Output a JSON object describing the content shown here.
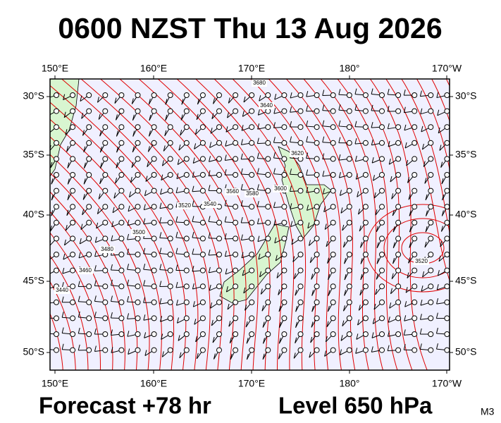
{
  "header": {
    "title": "0600 NZST Thu 13 Aug 2026"
  },
  "map": {
    "lon_labels": [
      "150°E",
      "160°E",
      "170°E",
      "180°",
      "170°W"
    ],
    "lat_labels": [
      "30°S",
      "35°S",
      "40°S",
      "45°S",
      "50°S"
    ],
    "contour_labels": [
      "3680",
      "3640",
      "3620",
      "3600",
      "3580",
      "3560",
      "3540",
      "3520",
      "3500",
      "3480",
      "3460",
      "3440",
      "3520"
    ]
  },
  "footer": {
    "forecast": "Forecast +78 hr",
    "level": "Level 650 hPa",
    "code": "M3"
  }
}
